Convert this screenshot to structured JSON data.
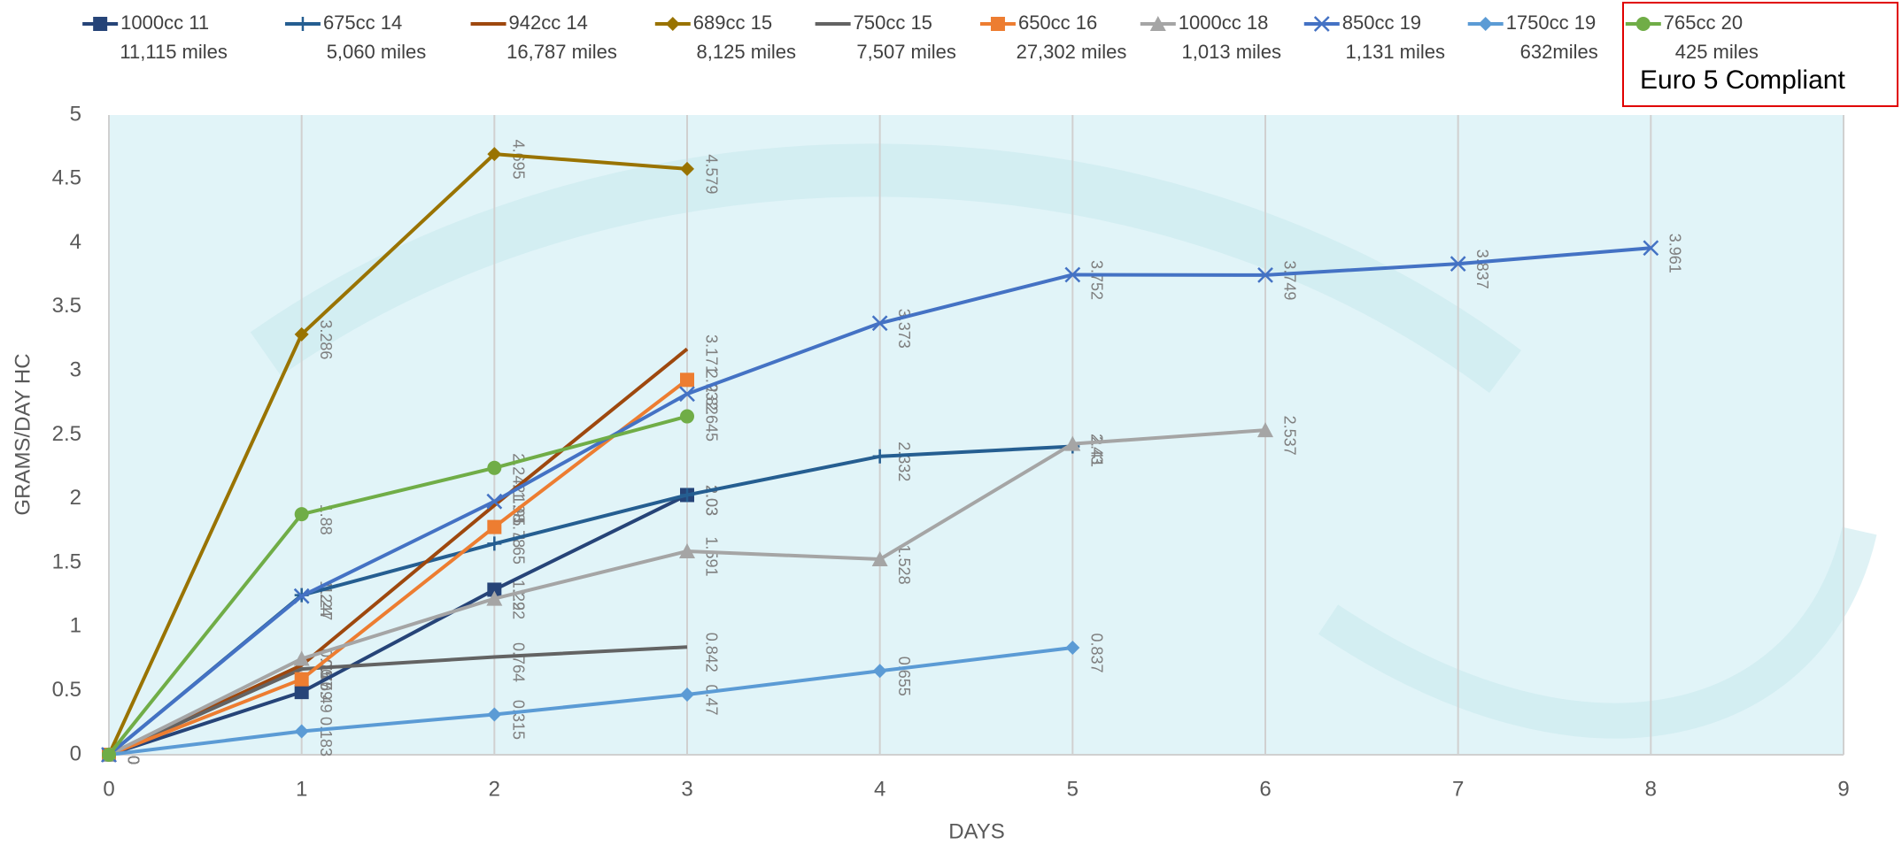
{
  "chart_data": {
    "type": "line",
    "x_label": "DAYS",
    "y_label": "GRAMS/DAY HC",
    "annotation": "Euro 5 Compliant",
    "x": [
      0,
      1,
      2,
      3,
      4,
      5,
      6,
      7,
      8
    ],
    "xlim": [
      0,
      9
    ],
    "xticks": [
      0,
      1,
      2,
      3,
      4,
      5,
      6,
      7,
      8,
      9
    ],
    "ylim": [
      0,
      5
    ],
    "yticks": [
      0,
      0.5,
      1,
      1.5,
      2,
      2.5,
      3,
      3.5,
      4,
      4.5,
      5
    ],
    "grid": "x",
    "series": [
      {
        "name": "1000cc 11",
        "mileage": "11,115 miles",
        "color": "#264478",
        "marker": "square",
        "values": [
          0,
          0.49,
          1.29,
          2.03,
          null,
          null,
          null,
          null,
          null
        ]
      },
      {
        "name": "675cc 14",
        "mileage": "5,060 miles",
        "color": "#255e91",
        "marker": "plus",
        "values": [
          0,
          1.247,
          1.65,
          2.03,
          2.332,
          2.41,
          null,
          null,
          null
        ]
      },
      {
        "name": "942cc 14",
        "mileage": "16,787 miles",
        "color": "#9e480e",
        "marker": "none",
        "values": [
          0,
          0.7,
          1.95,
          3.171,
          null,
          null,
          null,
          null,
          null
        ]
      },
      {
        "name": "689cc 15",
        "mileage": "8,125 miles",
        "color": "#997300",
        "marker": "diamond",
        "values": [
          0,
          3.286,
          4.695,
          4.579,
          null,
          null,
          null,
          null,
          null
        ]
      },
      {
        "name": "750cc 15",
        "mileage": "7,507 miles",
        "color": "#636363",
        "marker": "none",
        "values": [
          0,
          0.67,
          0.764,
          0.842,
          null,
          null,
          null,
          null,
          null
        ]
      },
      {
        "name": "650cc 16",
        "mileage": "27,302 miles",
        "color": "#ed7d31",
        "marker": "square",
        "values": [
          0,
          0.59,
          1.78,
          2.93,
          null,
          null,
          null,
          null,
          null
        ]
      },
      {
        "name": "1000cc 18",
        "mileage": "1,013 miles",
        "color": "#a5a5a5",
        "marker": "triangle",
        "values": [
          0,
          0.75,
          1.22,
          1.591,
          1.528,
          2.43,
          2.537,
          null,
          null
        ]
      },
      {
        "name": "850cc 19",
        "mileage": "1,131 miles",
        "color": "#4472c4",
        "marker": "x",
        "values": [
          0,
          1.24,
          1.98,
          2.82,
          3.373,
          3.752,
          3.749,
          3.837,
          3.961
        ]
      },
      {
        "name": "1750cc 19",
        "mileage": "632miles",
        "color": "#5b9bd5",
        "marker": "diamond",
        "values": [
          0,
          0.183,
          0.315,
          0.47,
          0.655,
          0.837,
          null,
          null,
          null
        ]
      },
      {
        "name": "765cc 20",
        "mileage": "425 miles",
        "color": "#70ad47",
        "marker": "circle",
        "values": [
          0,
          1.88,
          2.242,
          2.645,
          null,
          null,
          null,
          null,
          null
        ]
      }
    ]
  }
}
